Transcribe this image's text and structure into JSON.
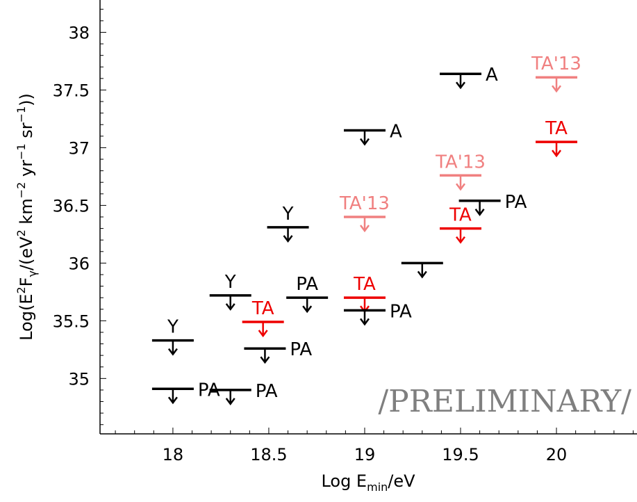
{
  "chart_data": {
    "type": "scatter",
    "marker": "upper-limit",
    "xlabel": {
      "base": "Log E",
      "sub": "min",
      "tail": "/eV"
    },
    "ylabel": {
      "p1": "Log(E",
      "p1sup": "2",
      "p2": "F",
      "p2sub": "γ",
      "p3": "/(eV",
      "p3sup": "2",
      "p4": " km",
      "p4sup": "−2",
      "p5": " yr",
      "p5sup": "−1",
      "p6": " sr",
      "p6sup": "−1",
      "p7": "))"
    },
    "xlim": [
      17.62,
      20.42
    ],
    "ylim": [
      34.52,
      38.28
    ],
    "xticks": [
      18,
      18.5,
      19,
      19.5,
      20
    ],
    "xtick_labels": [
      "18",
      "18.5",
      "19",
      "19.5",
      "20"
    ],
    "yticks": [
      35,
      35.5,
      36,
      36.5,
      37,
      37.5,
      38
    ],
    "ytick_labels": [
      "35",
      "35.5",
      "36",
      "36.5",
      "37",
      "37.5",
      "38"
    ],
    "colors": {
      "black": "#000000",
      "red": "#ee0000",
      "pink": "#f08080",
      "watermark": "#7f7f7f"
    },
    "points": [
      {
        "x": 18.0,
        "y": 35.33,
        "label": "Y",
        "color": "black",
        "label_pos": "above"
      },
      {
        "x": 18.0,
        "y": 34.91,
        "label": "PA",
        "color": "black",
        "label_pos": "right"
      },
      {
        "x": 18.3,
        "y": 35.72,
        "label": "Y",
        "color": "black",
        "label_pos": "above"
      },
      {
        "x": 18.3,
        "y": 34.9,
        "label": "PA",
        "color": "black",
        "label_pos": "right"
      },
      {
        "x": 18.47,
        "y": 35.49,
        "label": "TA",
        "color": "red",
        "label_pos": "above"
      },
      {
        "x": 18.48,
        "y": 35.26,
        "label": "PA",
        "color": "black",
        "label_pos": "right"
      },
      {
        "x": 18.6,
        "y": 36.31,
        "label": "Y",
        "color": "black",
        "label_pos": "above"
      },
      {
        "x": 18.7,
        "y": 35.7,
        "label": "PA",
        "color": "black",
        "label_pos": "above"
      },
      {
        "x": 19.0,
        "y": 36.4,
        "label": "TA'13",
        "color": "pink",
        "label_pos": "above"
      },
      {
        "x": 19.0,
        "y": 35.7,
        "label": "TA",
        "color": "red",
        "label_pos": "above"
      },
      {
        "x": 19.0,
        "y": 35.59,
        "label": "PA",
        "color": "black",
        "label_pos": "right"
      },
      {
        "x": 19.0,
        "y": 37.15,
        "label": "A",
        "color": "black",
        "label_pos": "right"
      },
      {
        "x": 19.3,
        "y": 36.0,
        "label": "",
        "color": "black",
        "label_pos": "none"
      },
      {
        "x": 19.5,
        "y": 37.64,
        "label": "A",
        "color": "black",
        "label_pos": "right"
      },
      {
        "x": 19.5,
        "y": 36.76,
        "label": "TA'13",
        "color": "pink",
        "label_pos": "above"
      },
      {
        "x": 19.5,
        "y": 36.3,
        "label": "TA",
        "color": "red",
        "label_pos": "above"
      },
      {
        "x": 19.6,
        "y": 36.54,
        "label": "PA",
        "color": "black",
        "label_pos": "right"
      },
      {
        "x": 20.0,
        "y": 37.61,
        "label": "TA'13",
        "color": "pink",
        "label_pos": "above"
      },
      {
        "x": 20.0,
        "y": 37.05,
        "label": "TA",
        "color": "red",
        "label_pos": "above"
      }
    ],
    "watermark": "/PRELIMINARY/"
  }
}
